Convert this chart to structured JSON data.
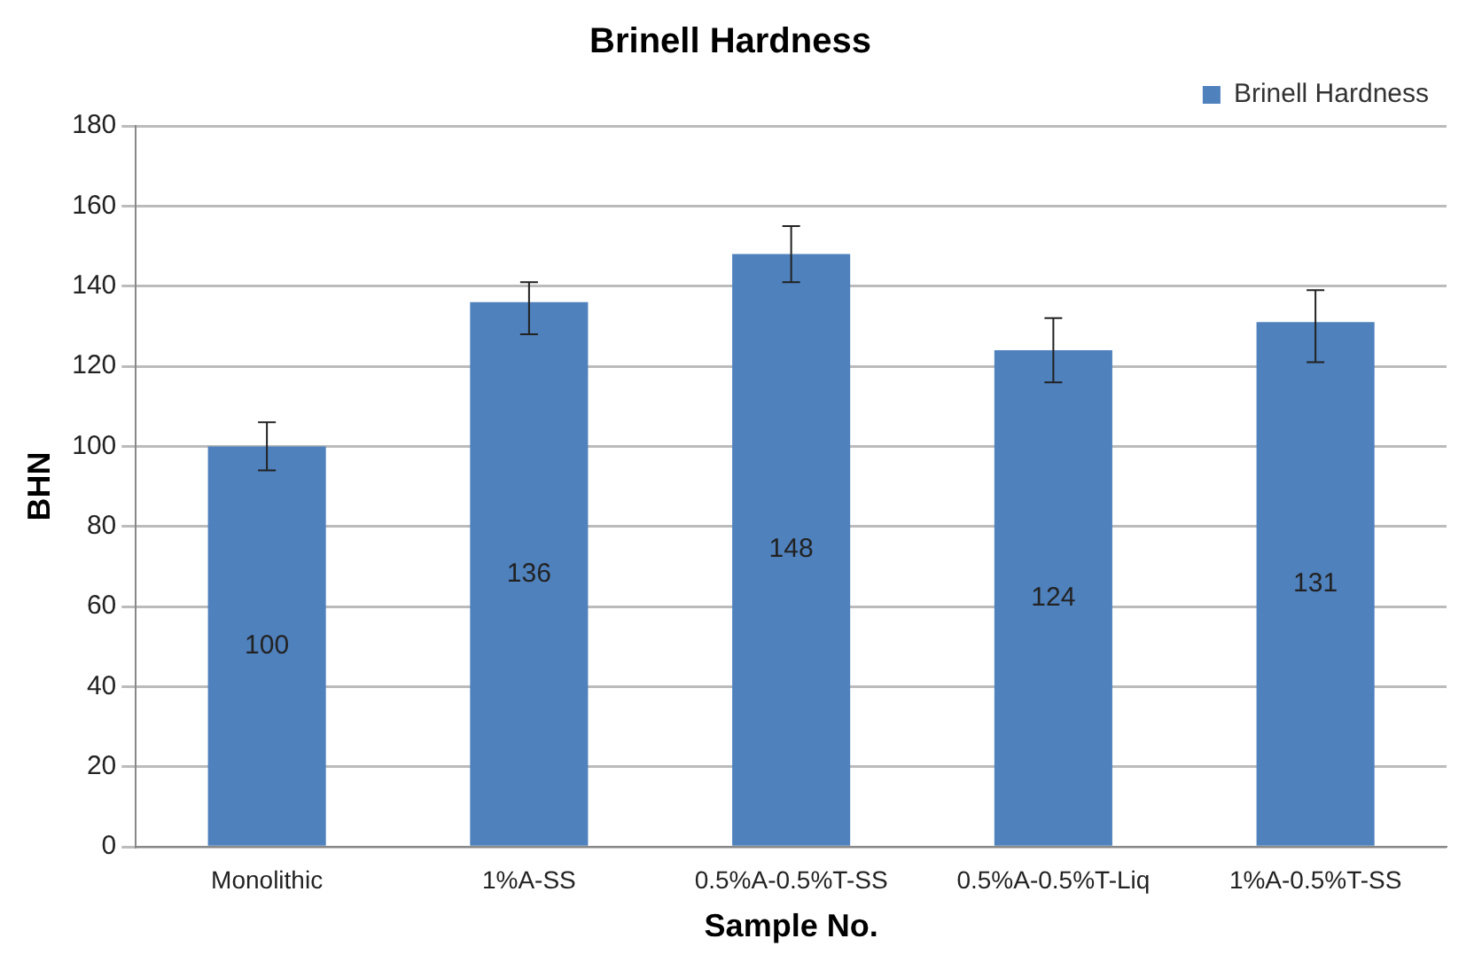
{
  "chart_data": {
    "type": "bar",
    "title": "Brinell Hardness",
    "xlabel": "Sample No.",
    "ylabel": "BHN",
    "categories": [
      "Monolithic",
      "1%A-SS",
      "0.5%A-0.5%T-SS",
      "0.5%A-0.5%T-Liq",
      "1%A-0.5%T-SS"
    ],
    "series": [
      {
        "name": "Brinell Hardness",
        "color": "#4f81bd",
        "values": [
          100,
          136,
          148,
          124,
          131
        ],
        "errors": [
          6,
          [
            128,
            141
          ],
          7,
          8,
          [
            121,
            139
          ]
        ]
      }
    ],
    "ylim": [
      0,
      180
    ],
    "yticks": [
      0,
      20,
      40,
      60,
      80,
      100,
      120,
      140,
      160,
      180
    ],
    "grid": "y",
    "legend": "top right",
    "data_labels": true
  }
}
